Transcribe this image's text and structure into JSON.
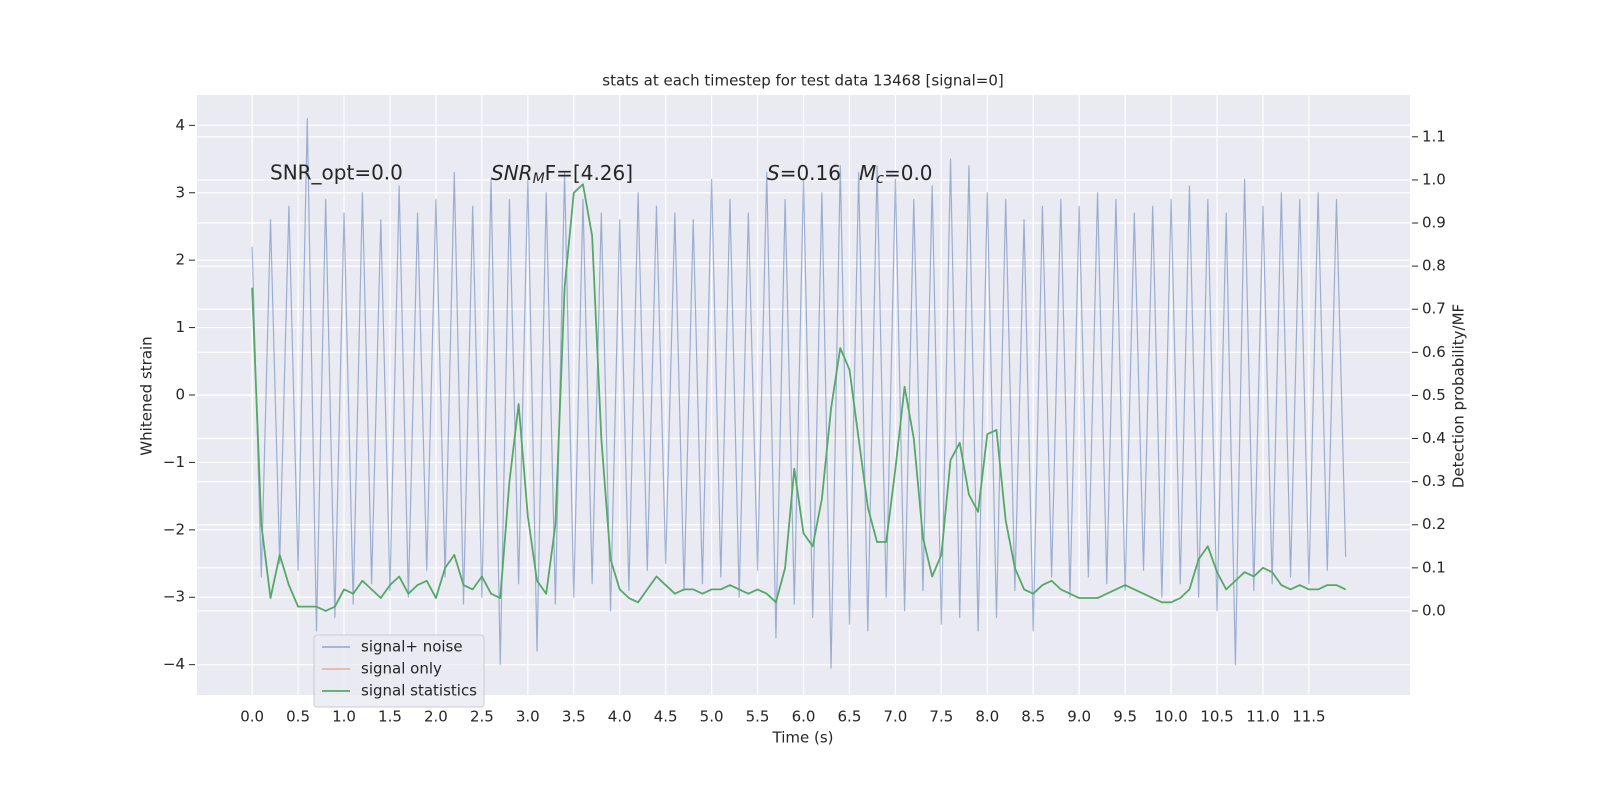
{
  "chart_data": {
    "type": "line",
    "title": "stats at each timestep for test data 13468 [signal=0]",
    "xlabel": "Time (s)",
    "ylabel": "Whitened strain",
    "y2label": "Detection probability/MF",
    "annotations": [
      {
        "text": "SNR_opt=0.0"
      },
      {
        "base": "SNR",
        "sub": "M",
        "rest": "F=[4.26]"
      },
      {
        "base": "S",
        "rest": "=0.16"
      },
      {
        "base": "M",
        "sub": "c",
        "rest": "=0.0"
      }
    ],
    "grid": true,
    "legend_loc": "lower left",
    "xlim": [
      -0.6,
      12.6
    ],
    "ylim": [
      -4.45,
      4.45
    ],
    "y2lim": [
      -0.195,
      1.197
    ],
    "xticks": [
      {
        "value": 0,
        "label": "0.0"
      },
      {
        "value": 0.5,
        "label": "0.5"
      },
      {
        "value": 1,
        "label": "1.0"
      },
      {
        "value": 1.5,
        "label": "1.5"
      },
      {
        "value": 2,
        "label": "2.0"
      },
      {
        "value": 2.5,
        "label": "2.5"
      },
      {
        "value": 3,
        "label": "3.0"
      },
      {
        "value": 3.5,
        "label": "3.5"
      },
      {
        "value": 4,
        "label": "4.0"
      },
      {
        "value": 4.5,
        "label": "4.5"
      },
      {
        "value": 5,
        "label": "5.0"
      },
      {
        "value": 5.5,
        "label": "5.5"
      },
      {
        "value": 6,
        "label": "6.0"
      },
      {
        "value": 6.5,
        "label": "6.5"
      },
      {
        "value": 7,
        "label": "7.0"
      },
      {
        "value": 7.5,
        "label": "7.5"
      },
      {
        "value": 8,
        "label": "8.0"
      },
      {
        "value": 8.5,
        "label": "8.5"
      },
      {
        "value": 9,
        "label": "9.0"
      },
      {
        "value": 9.5,
        "label": "9.5"
      },
      {
        "value": 10,
        "label": "10.0"
      },
      {
        "value": 10.5,
        "label": "10.5"
      },
      {
        "value": 11,
        "label": "11.0"
      },
      {
        "value": 11.5,
        "label": "11.5"
      }
    ],
    "yticks": [
      {
        "value": -4,
        "label": "−4"
      },
      {
        "value": -3,
        "label": "−3"
      },
      {
        "value": -2,
        "label": "−2"
      },
      {
        "value": -1,
        "label": "−1"
      },
      0,
      1,
      2,
      3,
      4
    ],
    "y2ticks": [
      {
        "value": 0,
        "label": "0.0"
      },
      {
        "value": 0.1,
        "label": "0.1"
      },
      {
        "value": 0.2,
        "label": "0.2"
      },
      {
        "value": 0.3,
        "label": "0.3"
      },
      {
        "value": 0.4,
        "label": "0.4"
      },
      {
        "value": 0.5,
        "label": "0.5"
      },
      {
        "value": 0.6,
        "label": "0.6"
      },
      {
        "value": 0.7,
        "label": "0.7"
      },
      {
        "value": 0.8,
        "label": "0.8"
      },
      {
        "value": 0.9,
        "label": "0.9"
      },
      {
        "value": 1,
        "label": "1.0"
      },
      {
        "value": 1.1,
        "label": "1.1"
      }
    ],
    "x": [
      0,
      0.1,
      0.2,
      0.3,
      0.4,
      0.5,
      0.6,
      0.7,
      0.8,
      0.9,
      1,
      1.1,
      1.2,
      1.3,
      1.4,
      1.5,
      1.6,
      1.7,
      1.8,
      1.9,
      2,
      2.1,
      2.2,
      2.3,
      2.4,
      2.5,
      2.6,
      2.7,
      2.8,
      2.9,
      3,
      3.1,
      3.2,
      3.3,
      3.4,
      3.5,
      3.6,
      3.7,
      3.8,
      3.9,
      4,
      4.1,
      4.2,
      4.3,
      4.4,
      4.5,
      4.6,
      4.7,
      4.8,
      4.9,
      5,
      5.1,
      5.2,
      5.3,
      5.4,
      5.5,
      5.6,
      5.7,
      5.8,
      5.9,
      6,
      6.1,
      6.2,
      6.3,
      6.4,
      6.5,
      6.6,
      6.7,
      6.8,
      6.9,
      7,
      7.1,
      7.2,
      7.3,
      7.4,
      7.5,
      7.6,
      7.7,
      7.8,
      7.9,
      8,
      8.1,
      8.2,
      8.3,
      8.4,
      8.5,
      8.6,
      8.7,
      8.8,
      8.9,
      9,
      9.1,
      9.2,
      9.3,
      9.4,
      9.5,
      9.6,
      9.7,
      9.8,
      9.9,
      10,
      10.1,
      10.2,
      10.3,
      10.4,
      10.5,
      10.6,
      10.7,
      10.8,
      10.9,
      11,
      11.1,
      11.2,
      11.3,
      11.4,
      11.5,
      11.6,
      11.7,
      11.8,
      11.9
    ],
    "series": [
      {
        "name": "signal+ noise",
        "color": "#4c72b0",
        "opacity": 0.5,
        "values": [
          2.2,
          -2.7,
          2.6,
          -2.5,
          2.8,
          -2.6,
          4.1,
          -3.5,
          2.9,
          -3.3,
          2.7,
          -3.1,
          3.0,
          -2.8,
          2.6,
          -2.9,
          3.1,
          -3.0,
          2.7,
          -2.6,
          2.9,
          -2.7,
          3.3,
          -3.1,
          2.8,
          -3.0,
          3.2,
          -4.0,
          2.9,
          -2.8,
          3.2,
          -3.8,
          3.0,
          -3.1,
          3.3,
          -3.0,
          2.9,
          -2.8,
          2.7,
          -3.2,
          2.6,
          -2.9,
          3.0,
          -2.6,
          2.8,
          -2.5,
          2.7,
          -2.9,
          2.6,
          -2.8,
          3.2,
          -2.7,
          2.9,
          -3.0,
          2.7,
          -2.6,
          3.3,
          -3.6,
          2.9,
          -3.1,
          3.2,
          -3.3,
          3.0,
          -4.05,
          3.4,
          -3.4,
          3.3,
          -3.5,
          3.4,
          -3.0,
          3.2,
          -3.2,
          2.9,
          -2.9,
          3.1,
          -3.4,
          3.5,
          -3.3,
          3.4,
          -3.5,
          3.0,
          -3.3,
          2.9,
          -2.9,
          2.6,
          -3.5,
          2.8,
          -2.7,
          2.9,
          -3.0,
          2.8,
          -2.7,
          3.0,
          -2.8,
          2.9,
          -2.9,
          2.7,
          -2.6,
          2.8,
          -3.0,
          2.9,
          -2.8,
          3.1,
          -3.0,
          2.9,
          -3.2,
          2.7,
          -4.0,
          3.2,
          -2.9,
          2.8,
          -2.8,
          3.0,
          -2.7,
          2.9,
          -2.8,
          3.0,
          -2.6,
          2.9,
          -2.4
        ]
      },
      {
        "name": "signal only",
        "color": "#dd8452",
        "opacity": 0.5
      },
      {
        "name": "signal statistics",
        "color": "#55a868",
        "axis": "y2",
        "values": [
          0.75,
          0.2,
          0.03,
          0.13,
          0.06,
          0.01,
          0.01,
          0.01,
          0.0,
          0.01,
          0.05,
          0.04,
          0.07,
          0.05,
          0.03,
          0.06,
          0.08,
          0.04,
          0.06,
          0.07,
          0.03,
          0.1,
          0.13,
          0.06,
          0.05,
          0.08,
          0.04,
          0.03,
          0.3,
          0.48,
          0.22,
          0.07,
          0.04,
          0.2,
          0.75,
          0.97,
          0.99,
          0.87,
          0.4,
          0.12,
          0.05,
          0.03,
          0.02,
          0.05,
          0.08,
          0.06,
          0.04,
          0.05,
          0.05,
          0.04,
          0.05,
          0.05,
          0.06,
          0.05,
          0.04,
          0.05,
          0.04,
          0.02,
          0.1,
          0.33,
          0.18,
          0.15,
          0.26,
          0.47,
          0.61,
          0.56,
          0.4,
          0.24,
          0.16,
          0.16,
          0.33,
          0.52,
          0.4,
          0.17,
          0.08,
          0.13,
          0.35,
          0.39,
          0.27,
          0.23,
          0.41,
          0.42,
          0.21,
          0.1,
          0.05,
          0.04,
          0.06,
          0.07,
          0.05,
          0.04,
          0.03,
          0.03,
          0.03,
          0.04,
          0.05,
          0.06,
          0.05,
          0.04,
          0.03,
          0.02,
          0.02,
          0.03,
          0.05,
          0.12,
          0.15,
          0.09,
          0.05,
          0.07,
          0.09,
          0.08,
          0.1,
          0.09,
          0.06,
          0.05,
          0.06,
          0.05,
          0.05,
          0.06,
          0.06,
          0.05
        ]
      }
    ]
  }
}
